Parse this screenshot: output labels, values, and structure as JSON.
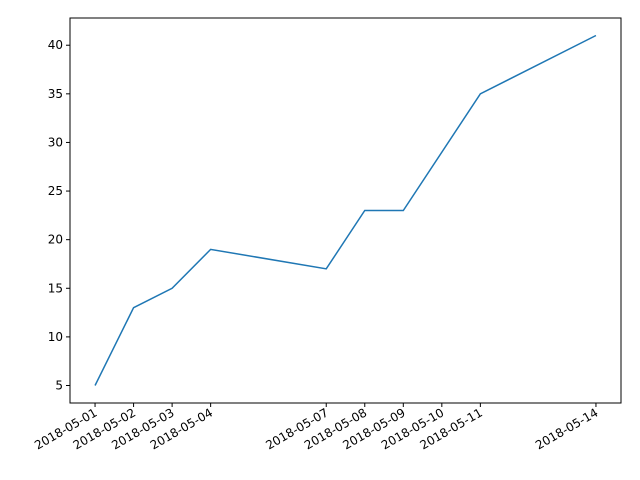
{
  "chart_data": {
    "type": "line",
    "x": [
      "2018-05-01",
      "2018-05-02",
      "2018-05-03",
      "2018-05-04",
      "2018-05-07",
      "2018-05-08",
      "2018-05-09",
      "2018-05-11",
      "2018-05-14"
    ],
    "series": [
      {
        "color": "#1f77b4",
        "values": [
          5,
          13,
          15,
          19,
          17,
          23,
          23,
          35,
          41
        ]
      }
    ],
    "xlim": [
      "2018-04-30T08:24:00Z",
      "2018-05-14T15:36:00Z"
    ],
    "xticks": [
      "2018-05-01",
      "2018-05-02",
      "2018-05-03",
      "2018-05-04",
      "2018-05-07",
      "2018-05-08",
      "2018-05-09",
      "2018-05-10",
      "2018-05-11",
      "2018-05-14"
    ],
    "ylim": [
      3.2,
      42.8
    ],
    "yticks": [
      5,
      10,
      15,
      20,
      25,
      30,
      35,
      40
    ],
    "grid": false
  }
}
